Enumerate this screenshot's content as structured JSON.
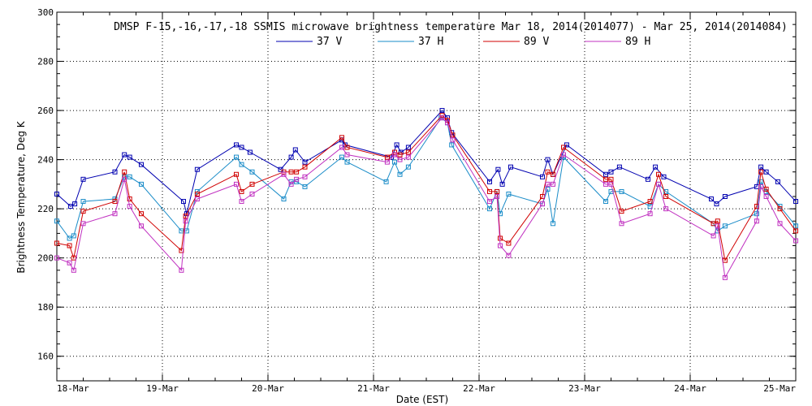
{
  "chart_data": {
    "type": "line",
    "title": "DMSP F-15,-16,-17,-18 SSMIS microwave brightness temperature Mar 18, 2014(2014077) - Mar 25, 2014(2014084)",
    "xlabel": "Date (EST)",
    "ylabel": "Brightness Temperature, Deg K",
    "ylim": [
      150,
      300
    ],
    "y_ticks": [
      160,
      180,
      200,
      220,
      240,
      260,
      280,
      300
    ],
    "xlim": [
      "2014-03-18",
      "2014-03-25"
    ],
    "x_ticks": [
      "18-Mar",
      "19-Mar",
      "20-Mar",
      "21-Mar",
      "22-Mar",
      "23-Mar",
      "24-Mar",
      "25-Mar"
    ],
    "grid": true,
    "legend_position": "top",
    "marker": "square",
    "series": [
      {
        "name": "37 V",
        "color": "#0000b0",
        "x": [
          18.0,
          18.13,
          18.17,
          18.25,
          18.55,
          18.64,
          18.69,
          18.8,
          19.2,
          19.23,
          19.33,
          19.7,
          19.75,
          19.83,
          20.12,
          20.22,
          20.26,
          20.35,
          20.7,
          20.73,
          21.17,
          21.22,
          21.26,
          21.33,
          21.65,
          21.7,
          21.74,
          22.1,
          22.18,
          22.22,
          22.3,
          22.6,
          22.65,
          22.7,
          22.83,
          23.2,
          23.25,
          23.33,
          23.6,
          23.67,
          23.75,
          24.2,
          24.25,
          24.33,
          24.63,
          24.67,
          24.72,
          24.83,
          25.0
        ],
        "y": [
          226,
          221,
          222,
          232,
          235,
          242,
          241,
          238,
          223,
          218,
          236,
          246,
          245,
          243,
          236,
          241,
          244,
          239,
          248,
          246,
          241,
          246,
          243,
          245,
          260,
          257,
          251,
          231,
          236,
          230,
          237,
          233,
          240,
          234,
          246,
          234,
          235,
          237,
          232,
          237,
          233,
          224,
          222,
          225,
          229,
          237,
          235,
          231,
          223
        ]
      },
      {
        "name": "37 H",
        "color": "#1a8cc8",
        "x": [
          18.0,
          18.12,
          18.16,
          18.25,
          18.55,
          18.64,
          18.69,
          18.8,
          19.18,
          19.23,
          19.33,
          19.7,
          19.75,
          19.85,
          20.15,
          20.22,
          20.27,
          20.35,
          20.7,
          20.75,
          21.12,
          21.2,
          21.25,
          21.33,
          21.64,
          21.7,
          21.74,
          22.1,
          22.17,
          22.2,
          22.28,
          22.6,
          22.65,
          22.7,
          22.8,
          23.2,
          23.25,
          23.35,
          23.62,
          23.7,
          23.77,
          24.22,
          24.26,
          24.33,
          24.63,
          24.67,
          24.72,
          24.85,
          25.0
        ],
        "y": [
          215,
          208,
          209,
          223,
          224,
          233,
          233,
          230,
          211,
          211,
          227,
          241,
          238,
          235,
          224,
          231,
          231,
          229,
          241,
          239,
          231,
          239,
          234,
          237,
          257,
          255,
          246,
          220,
          227,
          218,
          226,
          222,
          228,
          214,
          241,
          223,
          227,
          227,
          221,
          230,
          227,
          214,
          211,
          213,
          218,
          231,
          227,
          221,
          213
        ]
      },
      {
        "name": "89 V",
        "color": "#d00000",
        "x": [
          18.0,
          18.12,
          18.16,
          18.25,
          18.55,
          18.64,
          18.69,
          18.8,
          19.18,
          19.22,
          19.33,
          19.7,
          19.75,
          19.85,
          20.15,
          20.22,
          20.27,
          20.35,
          20.7,
          20.75,
          21.13,
          21.2,
          21.25,
          21.33,
          21.65,
          21.7,
          21.75,
          22.1,
          22.17,
          22.2,
          22.28,
          22.6,
          22.65,
          22.7,
          22.8,
          23.2,
          23.25,
          23.35,
          23.62,
          23.7,
          23.77,
          24.22,
          24.26,
          24.33,
          24.63,
          24.67,
          24.72,
          24.85,
          25.0
        ],
        "y": [
          206,
          205,
          200,
          219,
          223,
          235,
          224,
          218,
          203,
          217,
          226,
          234,
          227,
          230,
          235,
          235,
          235,
          237,
          249,
          245,
          241,
          243,
          242,
          243,
          258,
          256,
          250,
          227,
          227,
          208,
          206,
          225,
          235,
          234,
          245,
          232,
          232,
          219,
          223,
          234,
          225,
          214,
          215,
          199,
          221,
          235,
          228,
          220,
          211
        ]
      },
      {
        "name": "89 H",
        "color": "#c030c0",
        "x": [
          18.0,
          18.12,
          18.16,
          18.25,
          18.55,
          18.64,
          18.69,
          18.8,
          19.18,
          19.22,
          19.33,
          19.7,
          19.75,
          19.85,
          20.15,
          20.22,
          20.27,
          20.35,
          20.7,
          20.75,
          21.13,
          21.2,
          21.25,
          21.33,
          21.65,
          21.7,
          21.75,
          22.1,
          22.17,
          22.2,
          22.28,
          22.6,
          22.65,
          22.7,
          22.8,
          23.2,
          23.25,
          23.35,
          23.62,
          23.7,
          23.77,
          24.22,
          24.26,
          24.33,
          24.63,
          24.67,
          24.72,
          24.85,
          25.0
        ],
        "y": [
          200,
          198,
          195,
          214,
          218,
          232,
          221,
          213,
          195,
          215,
          224,
          230,
          223,
          226,
          234,
          230,
          232,
          233,
          245,
          242,
          239,
          242,
          240,
          241,
          257,
          255,
          248,
          223,
          225,
          205,
          201,
          222,
          230,
          230,
          242,
          230,
          230,
          214,
          218,
          230,
          220,
          209,
          213,
          192,
          215,
          229,
          225,
          214,
          207
        ]
      }
    ]
  }
}
